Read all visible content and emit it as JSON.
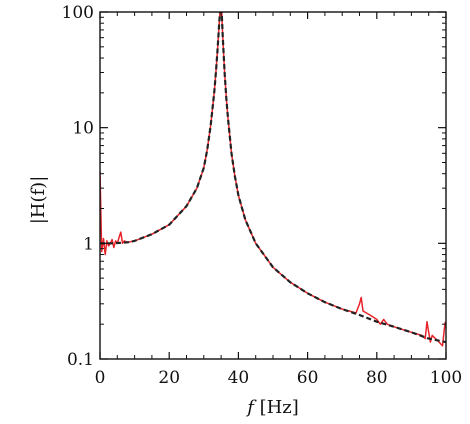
{
  "chart_data": {
    "type": "line",
    "xlabel": {
      "italic": "f",
      "unit": " [Hz]"
    },
    "ylabel": {
      "text": "|H(f)|"
    },
    "xlim": [
      0,
      100
    ],
    "ylim": [
      0.1,
      100
    ],
    "yscale": "log",
    "grid": false,
    "legend": "none",
    "x_ticks": [
      0,
      20,
      40,
      60,
      80,
      100
    ],
    "x_tick_labels": [
      "0",
      "20",
      "40",
      "60",
      "80",
      "100"
    ],
    "y_ticks": [
      0.1,
      1,
      10,
      100
    ],
    "y_tick_labels": [
      "0.1",
      "1",
      "10",
      "100"
    ],
    "colors": {
      "measured": "#e8242a",
      "model": "#222222"
    },
    "series": [
      {
        "style": "solid",
        "color": "#e8242a",
        "x": [
          0,
          0.5,
          1,
          1.5,
          2,
          2.5,
          3,
          3.5,
          4,
          4.5,
          5,
          5.5,
          6,
          6.5,
          7,
          8,
          10,
          15,
          20,
          25,
          28,
          30,
          31,
          32,
          33,
          33.5,
          34,
          34.5,
          35,
          35.5,
          36,
          36.5,
          37,
          38,
          39,
          40,
          42,
          45,
          50,
          55,
          60,
          65,
          70,
          72,
          74,
          75,
          75.5,
          76,
          78,
          80,
          81,
          82,
          83,
          85,
          90,
          93,
          94,
          94.5,
          95,
          95.5,
          96,
          98,
          99,
          99.5,
          99.8
        ],
        "y": [
          4.2,
          0.85,
          1.1,
          0.8,
          1.05,
          0.95,
          1.0,
          1.08,
          0.92,
          1.05,
          1.0,
          1.12,
          1.25,
          1.0,
          1.05,
          1.02,
          1.05,
          1.2,
          1.45,
          2.1,
          3.0,
          4.5,
          6.5,
          10.5,
          20.0,
          30.0,
          48.0,
          85.0,
          130.0,
          60.0,
          30.0,
          18.0,
          12.0,
          6.0,
          3.8,
          2.6,
          1.6,
          1.0,
          0.62,
          0.46,
          0.37,
          0.31,
          0.27,
          0.26,
          0.25,
          0.3,
          0.34,
          0.26,
          0.24,
          0.22,
          0.2,
          0.22,
          0.2,
          0.19,
          0.17,
          0.16,
          0.15,
          0.21,
          0.17,
          0.14,
          0.16,
          0.14,
          0.13,
          0.18,
          0.21
        ]
      },
      {
        "style": "dashed",
        "color": "#222222",
        "x": [
          0,
          1,
          2,
          4,
          6,
          8,
          10,
          15,
          20,
          25,
          28,
          30,
          31,
          32,
          33,
          33.5,
          34,
          34.5,
          35,
          35.5,
          36,
          36.5,
          37,
          38,
          39,
          40,
          42,
          45,
          50,
          55,
          60,
          65,
          70,
          75,
          80,
          85,
          90,
          95,
          100
        ],
        "y": [
          1.0,
          1.0,
          1.0,
          1.0,
          1.01,
          1.02,
          1.05,
          1.2,
          1.45,
          2.1,
          3.0,
          4.5,
          6.5,
          10.5,
          20.0,
          30.0,
          48.0,
          85.0,
          130.0,
          60.0,
          30.0,
          18.0,
          12.0,
          6.0,
          3.8,
          2.6,
          1.6,
          1.0,
          0.62,
          0.46,
          0.37,
          0.31,
          0.27,
          0.24,
          0.21,
          0.19,
          0.17,
          0.15,
          0.14
        ]
      }
    ]
  }
}
